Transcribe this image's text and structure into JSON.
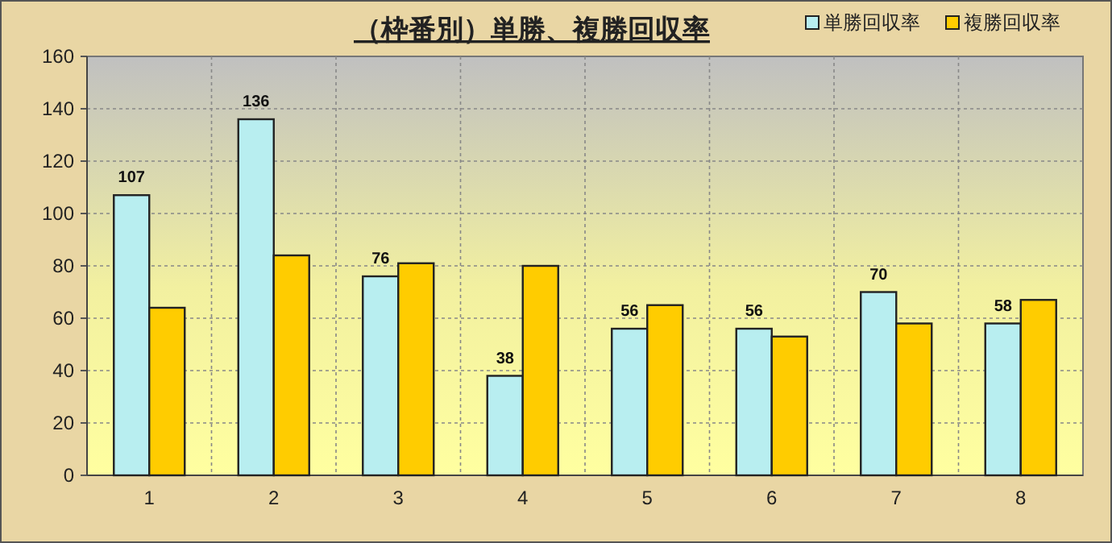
{
  "chart_data": {
    "type": "bar",
    "title": "（枠番別）単勝、複勝回収率",
    "categories": [
      "1",
      "2",
      "3",
      "4",
      "5",
      "6",
      "7",
      "8"
    ],
    "series": [
      {
        "name": "単勝回収率",
        "color": "#b8eef0",
        "values": [
          107,
          136,
          76,
          38,
          56,
          56,
          70,
          58
        ],
        "value_labels": [
          "107",
          "136",
          "76",
          "38",
          "56",
          "56",
          "70",
          "58"
        ]
      },
      {
        "name": "複勝回収率",
        "color": "#ffcc00",
        "values": [
          64,
          84,
          81,
          80,
          65,
          53,
          58,
          67
        ]
      }
    ],
    "ylim": [
      0,
      160
    ],
    "yticks": [
      0,
      20,
      40,
      60,
      80,
      100,
      120,
      140,
      160
    ],
    "grid": true,
    "legend": "top right"
  }
}
